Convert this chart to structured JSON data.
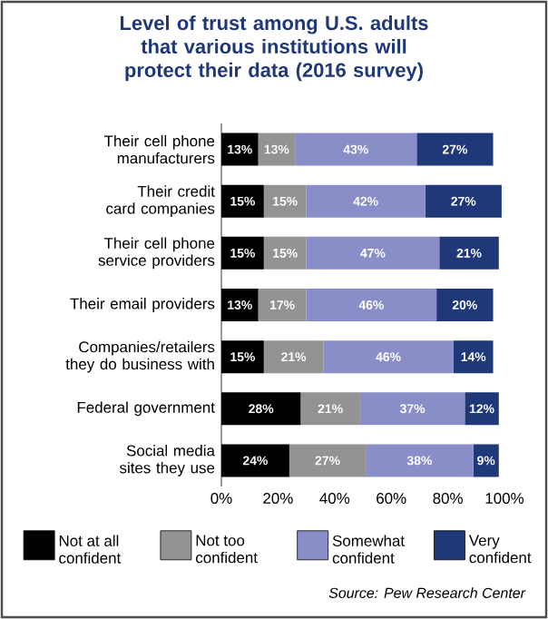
{
  "chart_data": {
    "type": "bar",
    "orientation": "horizontal",
    "stacked": true,
    "title": "Level of trust among U.S. adults that various institutions will protect their data (2016 survey)",
    "categories": [
      "Their cell phone manufacturers",
      "Their credit card companies",
      "Their cell phone service providers",
      "Their email providers",
      "Companies/retailers they do business with",
      "Federal government",
      "Social media sites they use"
    ],
    "series": [
      {
        "name": "Not at all confident",
        "color": "#000000",
        "values": [
          13,
          15,
          15,
          13,
          15,
          28,
          24
        ],
        "value_labels": [
          "13%",
          "15%",
          "15%",
          "13%",
          "15%",
          "28%",
          "24%"
        ]
      },
      {
        "name": "Not too confident",
        "color": "#939393",
        "values": [
          13,
          15,
          15,
          17,
          21,
          21,
          27
        ],
        "value_labels": [
          "13%",
          "15%",
          "15%",
          "17%",
          "21%",
          "21%",
          "27%"
        ]
      },
      {
        "name": "Somewhat confident",
        "color": "#8a8ec8",
        "values": [
          43,
          42,
          47,
          46,
          46,
          37,
          38
        ],
        "value_labels": [
          "43%",
          "42%",
          "47%",
          "46%",
          "46%",
          "37%",
          "38%"
        ]
      },
      {
        "name": "Very confident",
        "color": "#1f3878",
        "values": [
          27,
          27,
          21,
          20,
          14,
          12,
          9
        ],
        "value_labels": [
          "27%",
          "27%",
          "21%",
          "20%",
          "14%",
          "12%",
          "9%"
        ]
      }
    ],
    "xlim": [
      0,
      100
    ],
    "xticks": [
      {
        "value": 0,
        "label": "0%"
      },
      {
        "value": 20,
        "label": "20%"
      },
      {
        "value": 40,
        "label": "40%"
      },
      {
        "value": 60,
        "label": "60%"
      },
      {
        "value": 80,
        "label": "80%"
      },
      {
        "value": 100,
        "label": "100%"
      }
    ],
    "legend": "bottom",
    "annotations": [
      "Source: Pew Research Center"
    ]
  }
}
